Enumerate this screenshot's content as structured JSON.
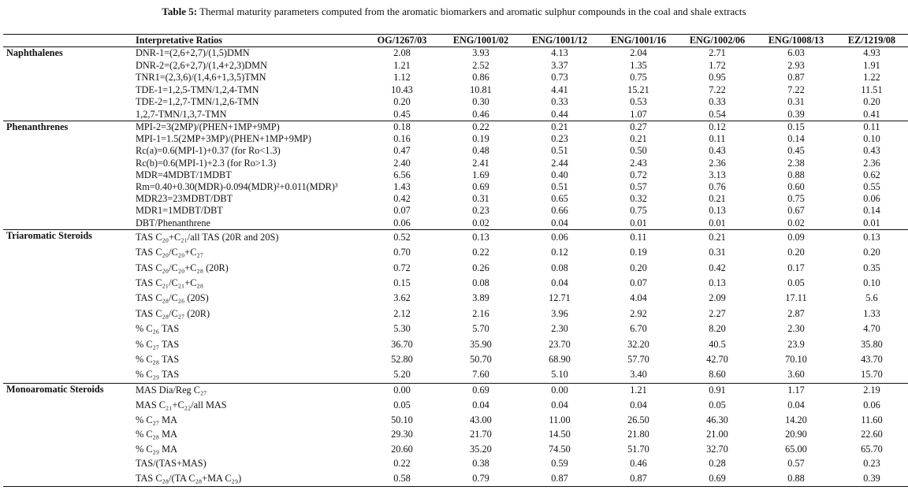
{
  "caption": {
    "label": "Table 5:",
    "text": " Thermal maturity parameters computed from the aromatic biomarkers and aromatic sulphur compounds in the coal and shale extracts"
  },
  "headers": [
    "",
    "Interpretative Ratios",
    "OG/1267/03",
    "ENG/1001/02",
    "ENG/1001/12",
    "ENG/1001/16",
    "ENG/1002/06",
    "ENG/1008/13",
    "EZ/1219/08"
  ],
  "sections": [
    {
      "name": "Naphthalenes",
      "rows": [
        {
          "ratio": "DNR-1=(2,6+2,7)/(1,5)DMN",
          "values": [
            "2.08",
            "3.93",
            "4.13",
            "2.04",
            "2.71",
            "6.03",
            "4.93"
          ]
        },
        {
          "ratio": "DNR-2=(2,6+2,7)/(1,4+2,3)DMN",
          "values": [
            "1.21",
            "2.52",
            "3.37",
            "1.35",
            "1.72",
            "2.93",
            "1.91"
          ]
        },
        {
          "ratio": "TNR1=(2,3,6)/(1,4,6+1,3,5)TMN",
          "values": [
            "1.12",
            "0.86",
            "0.73",
            "0.75",
            "0.95",
            "0.87",
            "1.22"
          ]
        },
        {
          "ratio": "TDE-1=1,2,5-TMN/1,2,4-TMN",
          "values": [
            "10.43",
            "10.81",
            "4.41",
            "15.21",
            "7.22",
            "7.22",
            "11.51"
          ]
        },
        {
          "ratio": "TDE-2=1,2,7-TMN/1,2,6-TMN",
          "values": [
            "0.20",
            "0.30",
            "0.33",
            "0.53",
            "0.33",
            "0.31",
            "0.20"
          ]
        },
        {
          "ratio": "1,2,7-TMN/1,3,7-TMN",
          "values": [
            "0.45",
            "0.46",
            "0.44",
            "1.07",
            "0.54",
            "0.39",
            "0.41"
          ]
        }
      ]
    },
    {
      "name": "Phenanthrenes",
      "rows": [
        {
          "ratio": "MPI-2=3(2MP)/(PHEN+1MP+9MP)",
          "values": [
            "0.18",
            "0.22",
            "0.21",
            "0.27",
            "0.12",
            "0.15",
            "0.11"
          ]
        },
        {
          "ratio": "MPI-1=1.5(2MP+3MP)/(PHEN+1MP+9MP)",
          "values": [
            "0.16",
            "0.19",
            "0.23",
            "0.21",
            "0.11",
            "0.14",
            "0.10"
          ]
        },
        {
          "ratio": "Rc(a)=0.6(MPI-1)+0.37 (for Ro<1.3)",
          "values": [
            "0.47",
            "0.48",
            "0.51",
            "0.50",
            "0.43",
            "0.45",
            "0.43"
          ]
        },
        {
          "ratio": "Rc(b)=0.6(MPI-1)+2.3 (for Ro>1.3)",
          "values": [
            "2.40",
            "2.41",
            "2.44",
            "2.43",
            "2.36",
            "2.38",
            "2.36"
          ]
        },
        {
          "ratio": "MDR=4MDBT/1MDBT",
          "values": [
            "6.56",
            "1.69",
            "0.40",
            "0.72",
            "3.13",
            "0.88",
            "0.62"
          ]
        },
        {
          "ratio": "Rm=0.40+0.30(MDR)-0.094(MDR)²+0.011(MDR)³",
          "values": [
            "1.43",
            "0.69",
            "0.51",
            "0.57",
            "0.76",
            "0.60",
            "0.55"
          ]
        },
        {
          "ratio": "MDR23=23MDBT/DBT",
          "values": [
            "0.42",
            "0.31",
            "0.65",
            "0.32",
            "0.21",
            "0.75",
            "0.06"
          ]
        },
        {
          "ratio": "MDR1=1MDBT/DBT",
          "values": [
            "0.07",
            "0.23",
            "0.66",
            "0.75",
            "0.13",
            "0.67",
            "0.14"
          ]
        },
        {
          "ratio": "DBT/Phenanthrene",
          "values": [
            "0.06",
            "0.02",
            "0.04",
            "0.01",
            "0.01",
            "0.02",
            "0.01"
          ]
        }
      ]
    },
    {
      "name": "Triaromatic Steroids",
      "rows": [
        {
          "ratio": "TAS C₂₀+C₂₁/all TAS (20R and 20S)",
          "values": [
            "0.52",
            "0.13",
            "0.06",
            "0.11",
            "0.21",
            "0.09",
            "0.13"
          ]
        },
        {
          "ratio": "TAS C₂₀/C₂₀+C₂₇",
          "values": [
            "0.70",
            "0.22",
            "0.12",
            "0.19",
            "0.31",
            "0.20",
            "0.20"
          ]
        },
        {
          "ratio": "TAS C₂₀/C₂₀+C₂₈ (20R)",
          "values": [
            "0.72",
            "0.26",
            "0.08",
            "0.20",
            "0.42",
            "0.17",
            "0.35"
          ]
        },
        {
          "ratio": "TAS C₂₁/C₂₁+C₂₈",
          "values": [
            "0.15",
            "0.08",
            "0.04",
            "0.07",
            "0.13",
            "0.05",
            "0.10"
          ]
        },
        {
          "ratio": "TAS C₂₈/C₂₆ (20S)",
          "values": [
            "3.62",
            "3.89",
            "12.71",
            "4.04",
            "2.09",
            "17.11",
            "5.6"
          ]
        },
        {
          "ratio": "TAS C₂₈/C₂₇ (20R)",
          "values": [
            "2.12",
            "2.16",
            "3.96",
            "2.92",
            "2.27",
            "2.87",
            "1.33"
          ]
        },
        {
          "ratio": "% C₂₆ TAS",
          "values": [
            "5.30",
            "5.70",
            "2.30",
            "6.70",
            "8.20",
            "2.30",
            "4.70"
          ]
        },
        {
          "ratio": "% C₂₇ TAS",
          "values": [
            "36.70",
            "35.90",
            "23.70",
            "32.20",
            "40.5",
            "23.9",
            "35.80"
          ]
        },
        {
          "ratio": "% C₂₈ TAS",
          "values": [
            "52.80",
            "50.70",
            "68.90",
            "57.70",
            "42.70",
            "70.10",
            "43.70"
          ]
        },
        {
          "ratio": "% C₂₉ TAS",
          "values": [
            "5.20",
            "7.60",
            "5.10",
            "3.40",
            "8.60",
            "3.60",
            "15.70"
          ]
        }
      ]
    },
    {
      "name": "Monoaromatic Steroids",
      "rows": [
        {
          "ratio": "MAS Dia/Reg C₂₇",
          "values": [
            "0.00",
            "0.69",
            "0.00",
            "1.21",
            "0.91",
            "1.17",
            "2.19"
          ]
        },
        {
          "ratio": "MAS C₂₁+C₂₂/all MAS",
          "values": [
            "0.05",
            "0.04",
            "0.04",
            "0.04",
            "0.05",
            "0.04",
            "0.06"
          ]
        },
        {
          "ratio": "% C₂₇ MA",
          "values": [
            "50.10",
            "43.00",
            "11.00",
            "26.50",
            "46.30",
            "14.20",
            "11.60"
          ]
        },
        {
          "ratio": "% C₂₈ MA",
          "values": [
            "29.30",
            "21.70",
            "14.50",
            "21.80",
            "21.00",
            "20.90",
            "22.60"
          ]
        },
        {
          "ratio": "% C₂₉ MA",
          "values": [
            "20.60",
            "35.20",
            "74.50",
            "51.70",
            "32.70",
            "65.00",
            "65.70"
          ]
        },
        {
          "ratio": "TAS/(TAS+MAS)",
          "values": [
            "0.22",
            "0.38",
            "0.59",
            "0.46",
            "0.28",
            "0.57",
            "0.23"
          ]
        },
        {
          "ratio": "TAS C₂₈/(TA C₂₈+MA C₂₉)",
          "values": [
            "0.58",
            "0.79",
            "0.87",
            "0.87",
            "0.69",
            "0.88",
            "0.39"
          ]
        }
      ]
    }
  ]
}
